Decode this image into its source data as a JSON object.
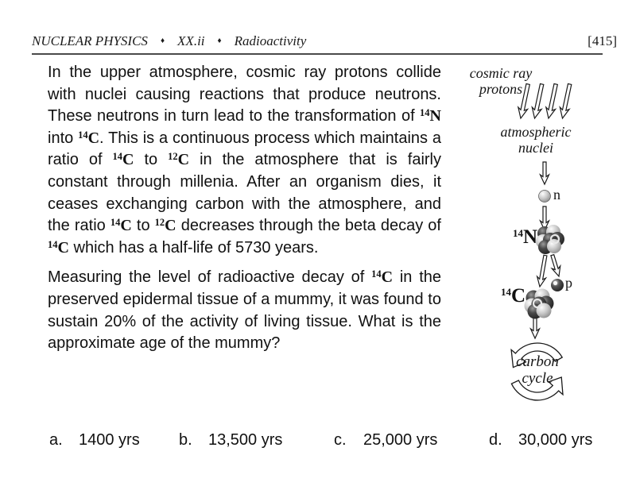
{
  "colors": {
    "ink": "#1a1a1a",
    "background": "#ffffff",
    "rule": "#4a4a4a"
  },
  "header": {
    "subject": "NUCLEAR PHYSICS",
    "separator": "♦",
    "section": "XX.ii",
    "topic": "Radioactivity",
    "page_number": "[415]"
  },
  "paragraphs": [
    {
      "segments": [
        {
          "text": "In the upper atmosphere, cosmic ray protons collide with nuclei causing reactions that produce neutrons.  These neutrons  in turn lead to the transformation of "
        },
        {
          "iso": {
            "mass": "14",
            "symbol": "N"
          }
        },
        {
          "text": " into "
        },
        {
          "iso": {
            "mass": "14",
            "symbol": "C"
          }
        },
        {
          "text": ".  This is a continuous process which maintains a ratio of "
        },
        {
          "iso": {
            "mass": "14",
            "symbol": "C"
          }
        },
        {
          "text": " to "
        },
        {
          "iso": {
            "mass": "12",
            "symbol": "C"
          }
        },
        {
          "text": " in the atmosphere that is fairly constant through millenia.  After an organism dies, it ceases exchanging carbon with the atmosphere, and the ratio "
        },
        {
          "iso": {
            "mass": "14",
            "symbol": "C"
          }
        },
        {
          "text": " to "
        },
        {
          "iso": {
            "mass": "12",
            "symbol": "C"
          }
        },
        {
          "text": " decreases through the beta decay of "
        },
        {
          "iso": {
            "mass": "14",
            "symbol": "C"
          }
        },
        {
          "text": " which has a half-life of 5730 years."
        }
      ]
    },
    {
      "segments": [
        {
          "text": "Measuring the level of radioactive decay of  "
        },
        {
          "iso": {
            "mass": "14",
            "symbol": "C"
          }
        },
        {
          "text": " in the preserved epidermal tissue of a mummy, it was found to sustain 20% of the activity of living tissue.  What is the approximate age of the mummy?"
        }
      ]
    }
  ],
  "answers": [
    {
      "label": "a.",
      "value": "1400 yrs"
    },
    {
      "label": "b.",
      "value": "13,500 yrs"
    },
    {
      "label": "c.",
      "value": "25,000 yrs"
    },
    {
      "label": "d.",
      "value": "30,000 yrs"
    }
  ],
  "diagram": {
    "cosmic_ray_line1": "cosmic ray",
    "cosmic_ray_line2": "protons",
    "atmospheric_line1": "atmospheric",
    "atmospheric_line2": "nuclei",
    "neutron_label": "n",
    "proton_label": "p",
    "nitrogen": {
      "mass": "14",
      "symbol": "N"
    },
    "carbon": {
      "mass": "14",
      "symbol": "C"
    },
    "cycle_line1": "carbon",
    "cycle_line2": "cycle"
  }
}
